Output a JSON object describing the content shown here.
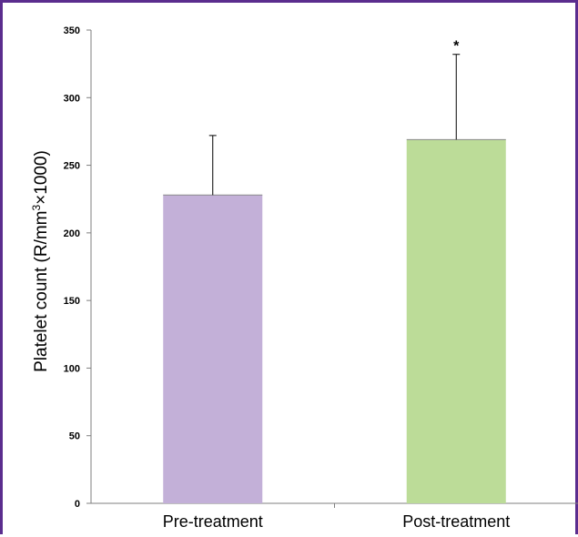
{
  "chart_data": {
    "type": "bar",
    "categories": [
      "Pre-treatment",
      "Post-treatment"
    ],
    "values": [
      228,
      269
    ],
    "error_upper": [
      272,
      332
    ],
    "colors": [
      "#c3b0d8",
      "#bcdc98"
    ],
    "ylabel_main": "Platelet count (R/mm",
    "ylabel_sup": "3",
    "ylabel_tail": "×1000)",
    "ylim": [
      0,
      350
    ],
    "yticks": [
      "0",
      "50",
      "100",
      "150",
      "200",
      "250",
      "300",
      "350"
    ],
    "annotations": [
      {
        "category_index": 1,
        "text": "*"
      }
    ],
    "grid": false
  }
}
